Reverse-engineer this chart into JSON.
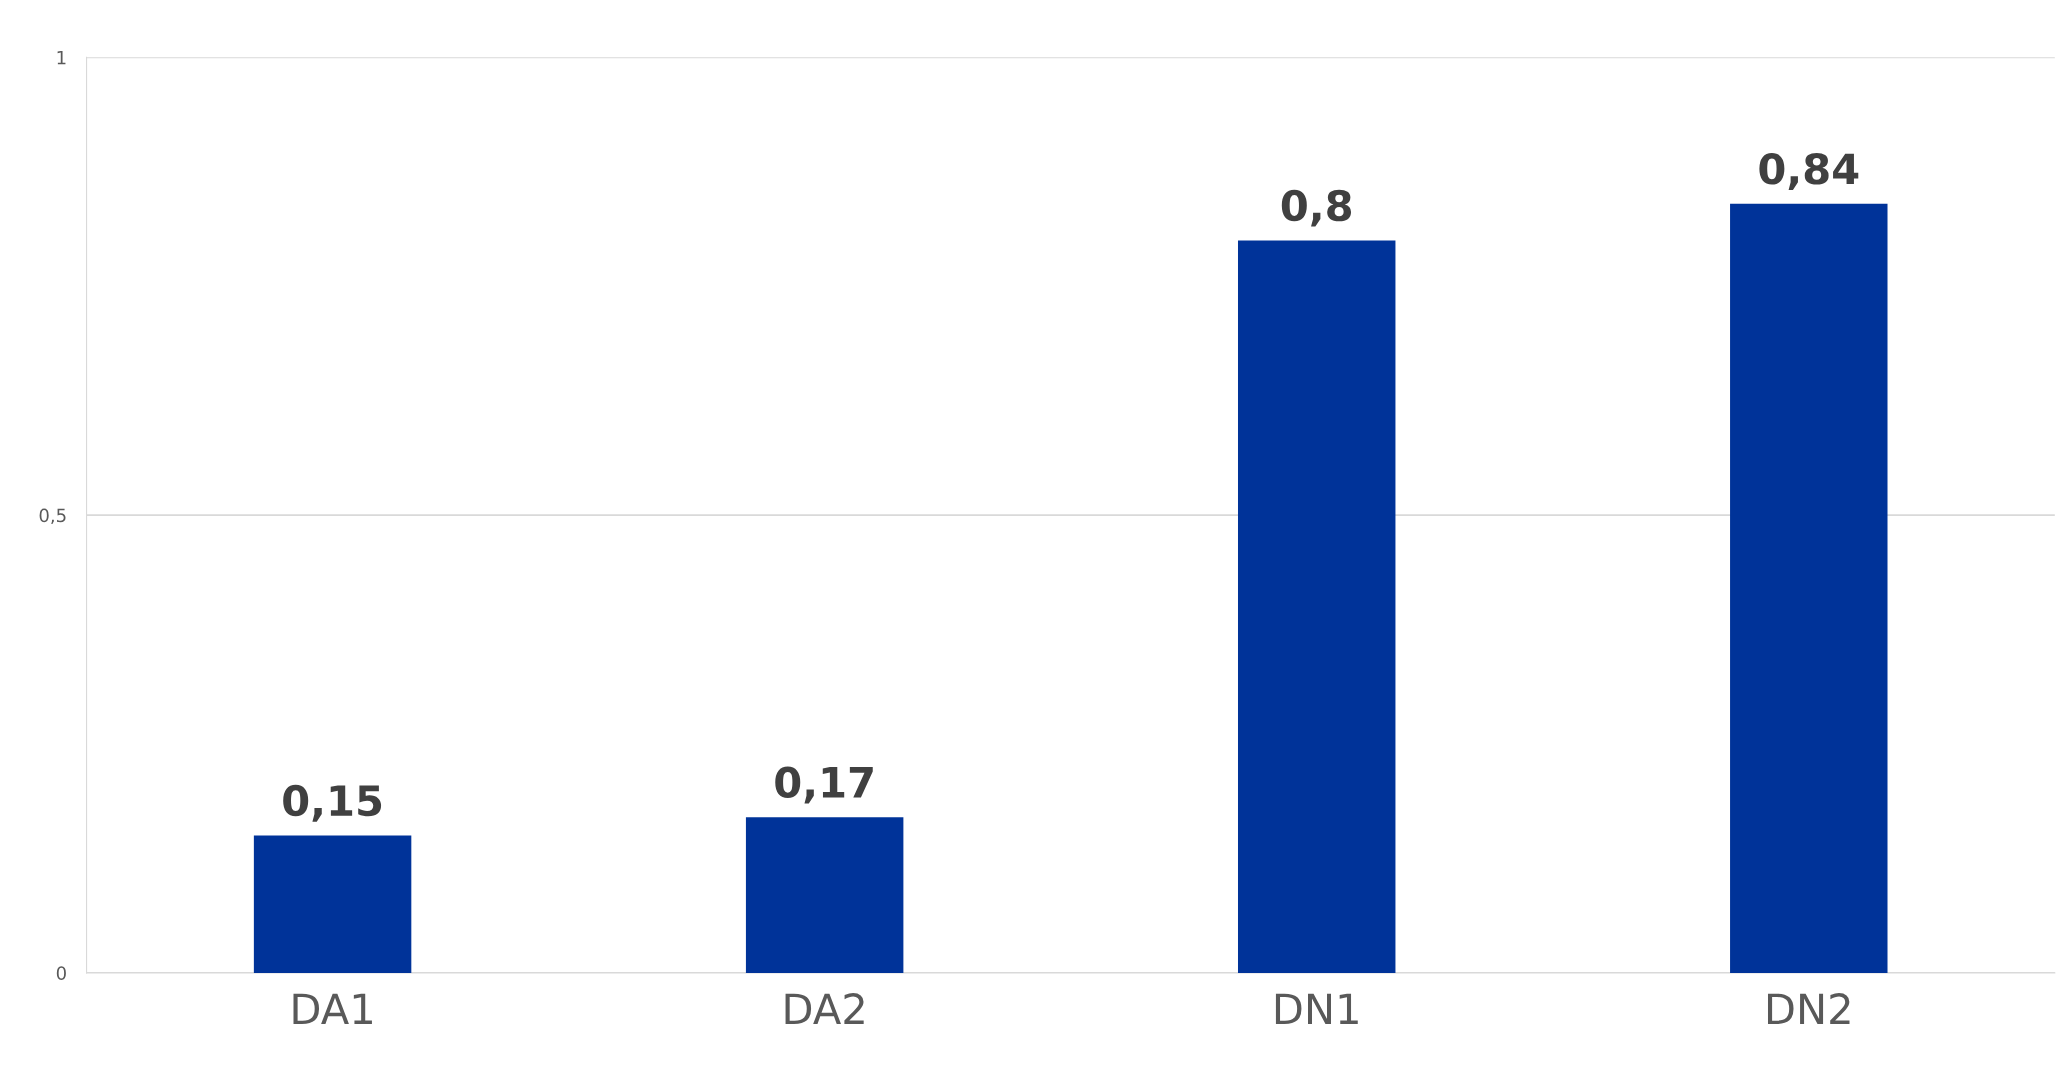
{
  "chart_data": {
    "type": "bar",
    "categories": [
      "DA1",
      "DA2",
      "DN1",
      "DN2"
    ],
    "values": [
      0.15,
      0.17,
      0.8,
      0.84
    ],
    "color": "#003399",
    "ylim": [
      0,
      1
    ],
    "yticks": [
      0,
      {
        "value": 0.5,
        "label": "0,5"
      },
      1
    ],
    "value_labels": [
      "0,15",
      "0,17",
      "0,8",
      "0,84"
    ],
    "grid": "y"
  }
}
